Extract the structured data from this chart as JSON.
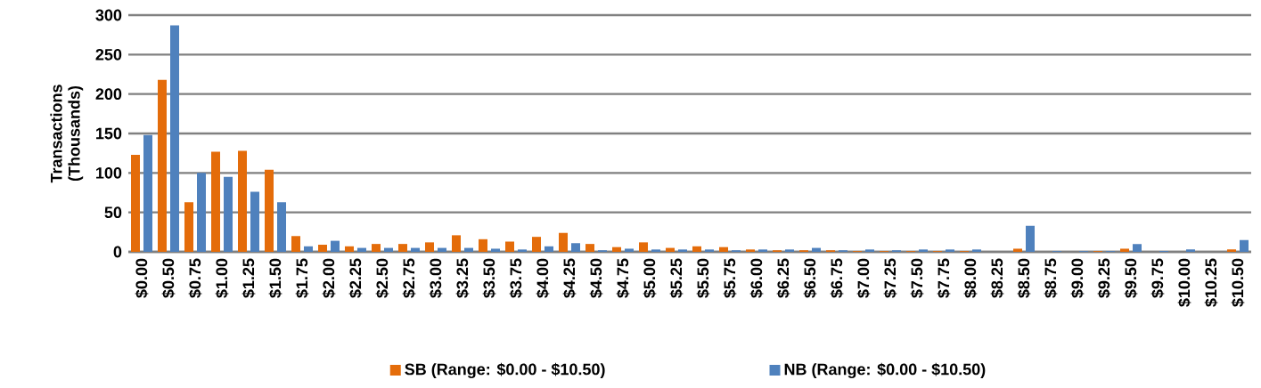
{
  "chart_data": {
    "type": "bar",
    "ylabel": "Transactions (Thousands)",
    "categories": [
      "$0.00",
      "$0.50",
      "$0.75",
      "$1.00",
      "$1.25",
      "$1.50",
      "$1.75",
      "$2.00",
      "$2.25",
      "$2.50",
      "$2.75",
      "$3.00",
      "$3.25",
      "$3.50",
      "$3.75",
      "$4.00",
      "$4.25",
      "$4.50",
      "$4.75",
      "$5.00",
      "$5.25",
      "$5.50",
      "$5.75",
      "$6.00",
      "$6.25",
      "$6.50",
      "$6.75",
      "$7.00",
      "$7.25",
      "$7.50",
      "$7.75",
      "$8.00",
      "$8.25",
      "$8.50",
      "$8.75",
      "$9.00",
      "$9.25",
      "$9.50",
      "$9.75",
      "$10.00",
      "$10.25",
      "$10.50"
    ],
    "series": [
      {
        "name": "SB (Range: $0.00 - $10.50)",
        "color": "#e46c0a",
        "values": [
          123,
          218,
          63,
          127,
          128,
          104,
          20,
          9,
          7,
          10,
          10,
          12,
          21,
          16,
          13,
          19,
          24,
          10,
          6,
          12,
          5,
          7,
          6,
          3,
          2,
          2,
          2,
          1,
          1,
          1,
          1,
          1,
          null,
          4,
          null,
          null,
          1,
          4,
          null,
          null,
          null,
          3
        ]
      },
      {
        "name": "NB (Range: $0.00 - $10.50)",
        "color": "#4f81bd",
        "values": [
          148,
          287,
          100,
          95,
          76,
          63,
          7,
          14,
          5,
          5,
          5,
          5,
          5,
          4,
          3,
          7,
          11,
          2,
          4,
          3,
          3,
          3,
          2,
          3,
          3,
          5,
          2,
          3,
          2,
          3,
          3,
          3,
          null,
          33,
          1,
          1,
          1,
          10,
          1,
          3,
          null,
          15
        ]
      }
    ],
    "ylim": [
      0,
      300
    ],
    "yticks": [
      0,
      50,
      100,
      150,
      200,
      250,
      300
    ],
    "grid": "y",
    "legend": "bottom"
  }
}
